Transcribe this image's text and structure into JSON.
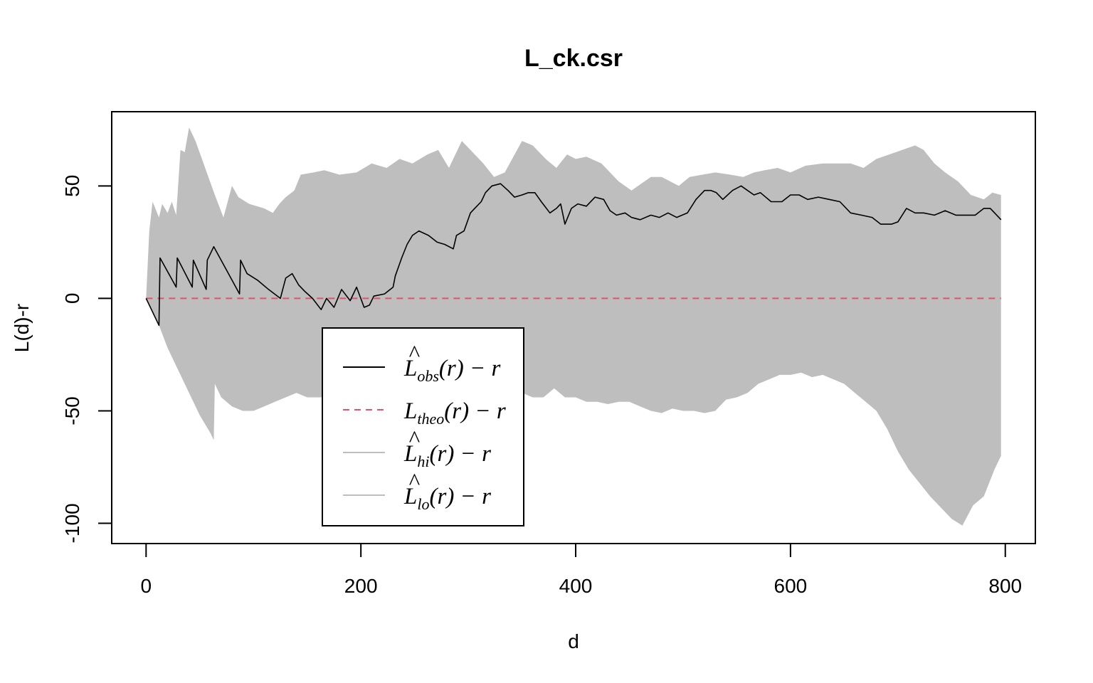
{
  "chart_data": {
    "type": "line",
    "title": "L_ck.csr",
    "xlabel": "d",
    "ylabel": "L(d)-r",
    "xlim": [
      -32,
      828
    ],
    "ylim": [
      -109,
      83
    ],
    "xticks": [
      0,
      200,
      400,
      600,
      800
    ],
    "yticks": [
      -100,
      -50,
      0,
      50
    ],
    "ytick_labels": [
      "-100",
      "-50",
      "0",
      "50"
    ],
    "grid": false,
    "legend_position": "inside-lower-left",
    "colors": {
      "obs": "#000000",
      "theo": "#DF536B",
      "envelope": "#BEBEBE"
    },
    "series": [
      {
        "name": "L̂obs(r) − r",
        "style": "solid",
        "x": [
          0,
          12,
          13,
          28,
          29,
          43,
          44,
          56,
          57,
          63,
          87,
          88,
          94,
          104,
          114,
          125,
          130,
          136,
          142,
          148,
          155,
          163,
          168,
          175,
          182,
          190,
          196,
          203,
          208,
          212,
          222,
          230,
          232,
          238,
          243,
          248,
          254,
          263,
          271,
          278,
          286,
          289,
          296,
          302,
          306,
          312,
          316,
          322,
          330,
          337,
          343,
          350,
          356,
          362,
          368,
          376,
          382,
          386,
          390,
          396,
          402,
          410,
          418,
          426,
          432,
          438,
          446,
          452,
          460,
          470,
          478,
          486,
          494,
          504,
          512,
          520,
          526,
          531,
          537,
          546,
          554,
          560,
          566,
          572,
          582,
          592,
          600,
          608,
          616,
          626,
          636,
          646,
          656,
          666,
          676,
          684,
          694,
          700,
          708,
          716,
          724,
          734,
          744,
          754,
          764,
          772,
          780,
          786,
          792,
          796
        ],
        "values": [
          0,
          -12,
          18,
          5,
          18,
          5,
          17,
          4,
          17,
          23,
          2,
          17,
          11,
          8,
          4,
          0,
          9,
          11,
          6,
          3,
          0,
          -5,
          0,
          -4,
          4,
          -1,
          5,
          -4,
          -3,
          1,
          2,
          5,
          10,
          18,
          24,
          28,
          30,
          28,
          25,
          24,
          22,
          28,
          30,
          38,
          40,
          43,
          47,
          50,
          51,
          48,
          45,
          46,
          47,
          47,
          43,
          38,
          40,
          42,
          33,
          40,
          42,
          41,
          45,
          44,
          39,
          37,
          38,
          36,
          35,
          37,
          36,
          38,
          36,
          38,
          44,
          48,
          48,
          47,
          44,
          48,
          50,
          48,
          46,
          47,
          43,
          43,
          46,
          46,
          44,
          45,
          44,
          43,
          38,
          37,
          36,
          33,
          33,
          34,
          40,
          38,
          38,
          37,
          39,
          37,
          37,
          37,
          40,
          40,
          37,
          35
        ]
      },
      {
        "name": "Ltheo(r) − r",
        "style": "dashed",
        "x": [
          0,
          796
        ],
        "values": [
          0,
          0
        ]
      },
      {
        "name": "L̂hi(r) − r",
        "style": "band-upper",
        "x": [
          0,
          3,
          6,
          12,
          15,
          20,
          24,
          28,
          32,
          36,
          40,
          46,
          52,
          58,
          64,
          72,
          80,
          86,
          96,
          110,
          118,
          124,
          130,
          138,
          144,
          156,
          166,
          180,
          196,
          210,
          224,
          236,
          248,
          262,
          272,
          282,
          294,
          304,
          314,
          324,
          334,
          342,
          350,
          360,
          372,
          382,
          392,
          400,
          410,
          424,
          440,
          452,
          470,
          480,
          496,
          506,
          518,
          530,
          544,
          556,
          566,
          576,
          588,
          600,
          614,
          630,
          642,
          656,
          668,
          680,
          692,
          704,
          716,
          724,
          734,
          744,
          756,
          768,
          780,
          788,
          796
        ],
        "values": [
          0,
          30,
          43,
          36,
          42,
          38,
          43,
          37,
          66,
          65,
          76,
          70,
          62,
          54,
          46,
          36,
          50,
          45,
          42,
          40,
          38,
          42,
          45,
          48,
          55,
          56,
          57,
          55,
          56,
          60,
          58,
          62,
          60,
          64,
          66,
          58,
          70,
          65,
          60,
          54,
          56,
          63,
          70,
          68,
          62,
          58,
          64,
          62,
          63,
          60,
          52,
          48,
          54,
          54,
          50,
          54,
          55,
          56,
          55,
          54,
          56,
          57,
          58,
          56,
          59,
          60,
          60,
          60,
          58,
          62,
          64,
          66,
          68,
          66,
          60,
          56,
          52,
          46,
          44,
          47,
          46
        ]
      },
      {
        "name": "L̂lo(r) − r",
        "style": "band-lower",
        "x": [
          0,
          12,
          20,
          30,
          40,
          50,
          60,
          63,
          64,
          66,
          70,
          80,
          90,
          100,
          110,
          120,
          130,
          140,
          150,
          160,
          170,
          180,
          190,
          200,
          210,
          220,
          230,
          240,
          250,
          260,
          270,
          280,
          290,
          300,
          310,
          320,
          330,
          340,
          350,
          360,
          370,
          380,
          390,
          400,
          410,
          420,
          430,
          440,
          450,
          460,
          470,
          480,
          490,
          500,
          510,
          520,
          530,
          540,
          550,
          560,
          570,
          580,
          590,
          600,
          610,
          620,
          630,
          640,
          650,
          660,
          670,
          680,
          690,
          700,
          710,
          720,
          730,
          740,
          750,
          760,
          770,
          780,
          790,
          796
        ],
        "values": [
          0,
          -12,
          -22,
          -32,
          -42,
          -52,
          -60,
          -63,
          -38,
          -40,
          -44,
          -48,
          -50,
          -50,
          -48,
          -46,
          -44,
          -42,
          -44,
          -44,
          -44,
          -46,
          -44,
          -42,
          -44,
          -44,
          -42,
          -44,
          -44,
          -42,
          -40,
          -42,
          -42,
          -40,
          -40,
          -38,
          -40,
          -40,
          -42,
          -44,
          -44,
          -40,
          -44,
          -44,
          -46,
          -46,
          -47,
          -46,
          -46,
          -48,
          -50,
          -51,
          -49,
          -50,
          -50,
          -51,
          -50,
          -45,
          -44,
          -42,
          -38,
          -36,
          -34,
          -34,
          -33,
          -35,
          -34,
          -36,
          -38,
          -42,
          -46,
          -50,
          -58,
          -68,
          -76,
          -82,
          -88,
          -93,
          -98,
          -101,
          -92,
          -88,
          -76,
          -70
        ]
      }
    ],
    "legend": [
      {
        "base": "L",
        "hat": "^",
        "sub": "obs",
        "suffix": "(r) − r"
      },
      {
        "base": "L",
        "hat": "",
        "sub": "theo",
        "suffix": "(r) − r"
      },
      {
        "base": "L",
        "hat": "^",
        "sub": "hi",
        "suffix": "(r) − r"
      },
      {
        "base": "L",
        "hat": "^",
        "sub": "lo",
        "suffix": "(r) − r"
      }
    ]
  }
}
